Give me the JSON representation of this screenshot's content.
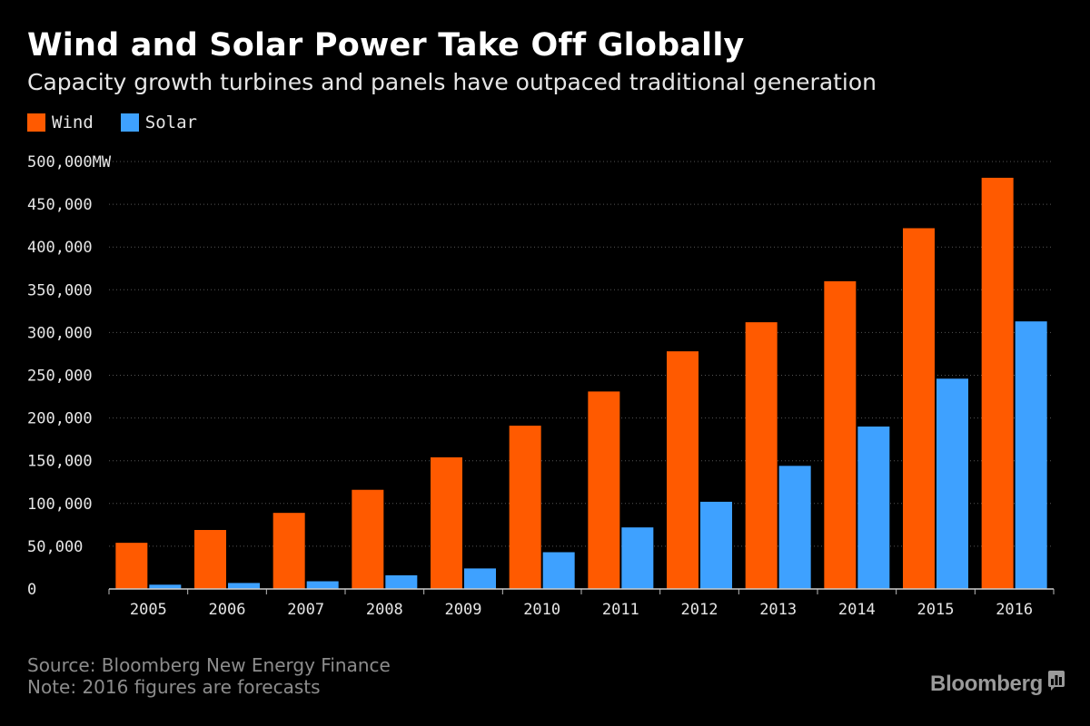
{
  "header": {
    "title": "Wind and Solar Power Take Off Globally",
    "subtitle": "Capacity growth turbines and panels have outpaced traditional generation"
  },
  "chart_data": {
    "type": "bar",
    "categories": [
      "2005",
      "2006",
      "2007",
      "2008",
      "2009",
      "2010",
      "2011",
      "2012",
      "2013",
      "2014",
      "2015",
      "2016"
    ],
    "series": [
      {
        "name": "Wind",
        "color": "#ff5a00",
        "values": [
          54000,
          69000,
          89000,
          116000,
          154000,
          191000,
          231000,
          278000,
          312000,
          360000,
          422000,
          481000
        ]
      },
      {
        "name": "Solar",
        "color": "#3ea1ff",
        "values": [
          5000,
          7000,
          9000,
          16000,
          24000,
          43000,
          72000,
          102000,
          144000,
          190000,
          246000,
          313000
        ]
      }
    ],
    "ylim": [
      0,
      500000
    ],
    "yticks": [
      0,
      50000,
      100000,
      150000,
      200000,
      250000,
      300000,
      350000,
      400000,
      450000,
      500000
    ],
    "ytick_labels": [
      "0",
      "50,000",
      "100,000",
      "150,000",
      "200,000",
      "250,000",
      "300,000",
      "350,000",
      "400,000",
      "450,000",
      "500,000MW"
    ],
    "grid": true,
    "legend_position": "top-left"
  },
  "footer": {
    "source": "Source: Bloomberg New Energy Finance",
    "note": "Note: 2016 figures are forecasts",
    "brand": "Bloomberg"
  },
  "icons": {
    "brand_icon": "bloomberg-chart-icon"
  }
}
